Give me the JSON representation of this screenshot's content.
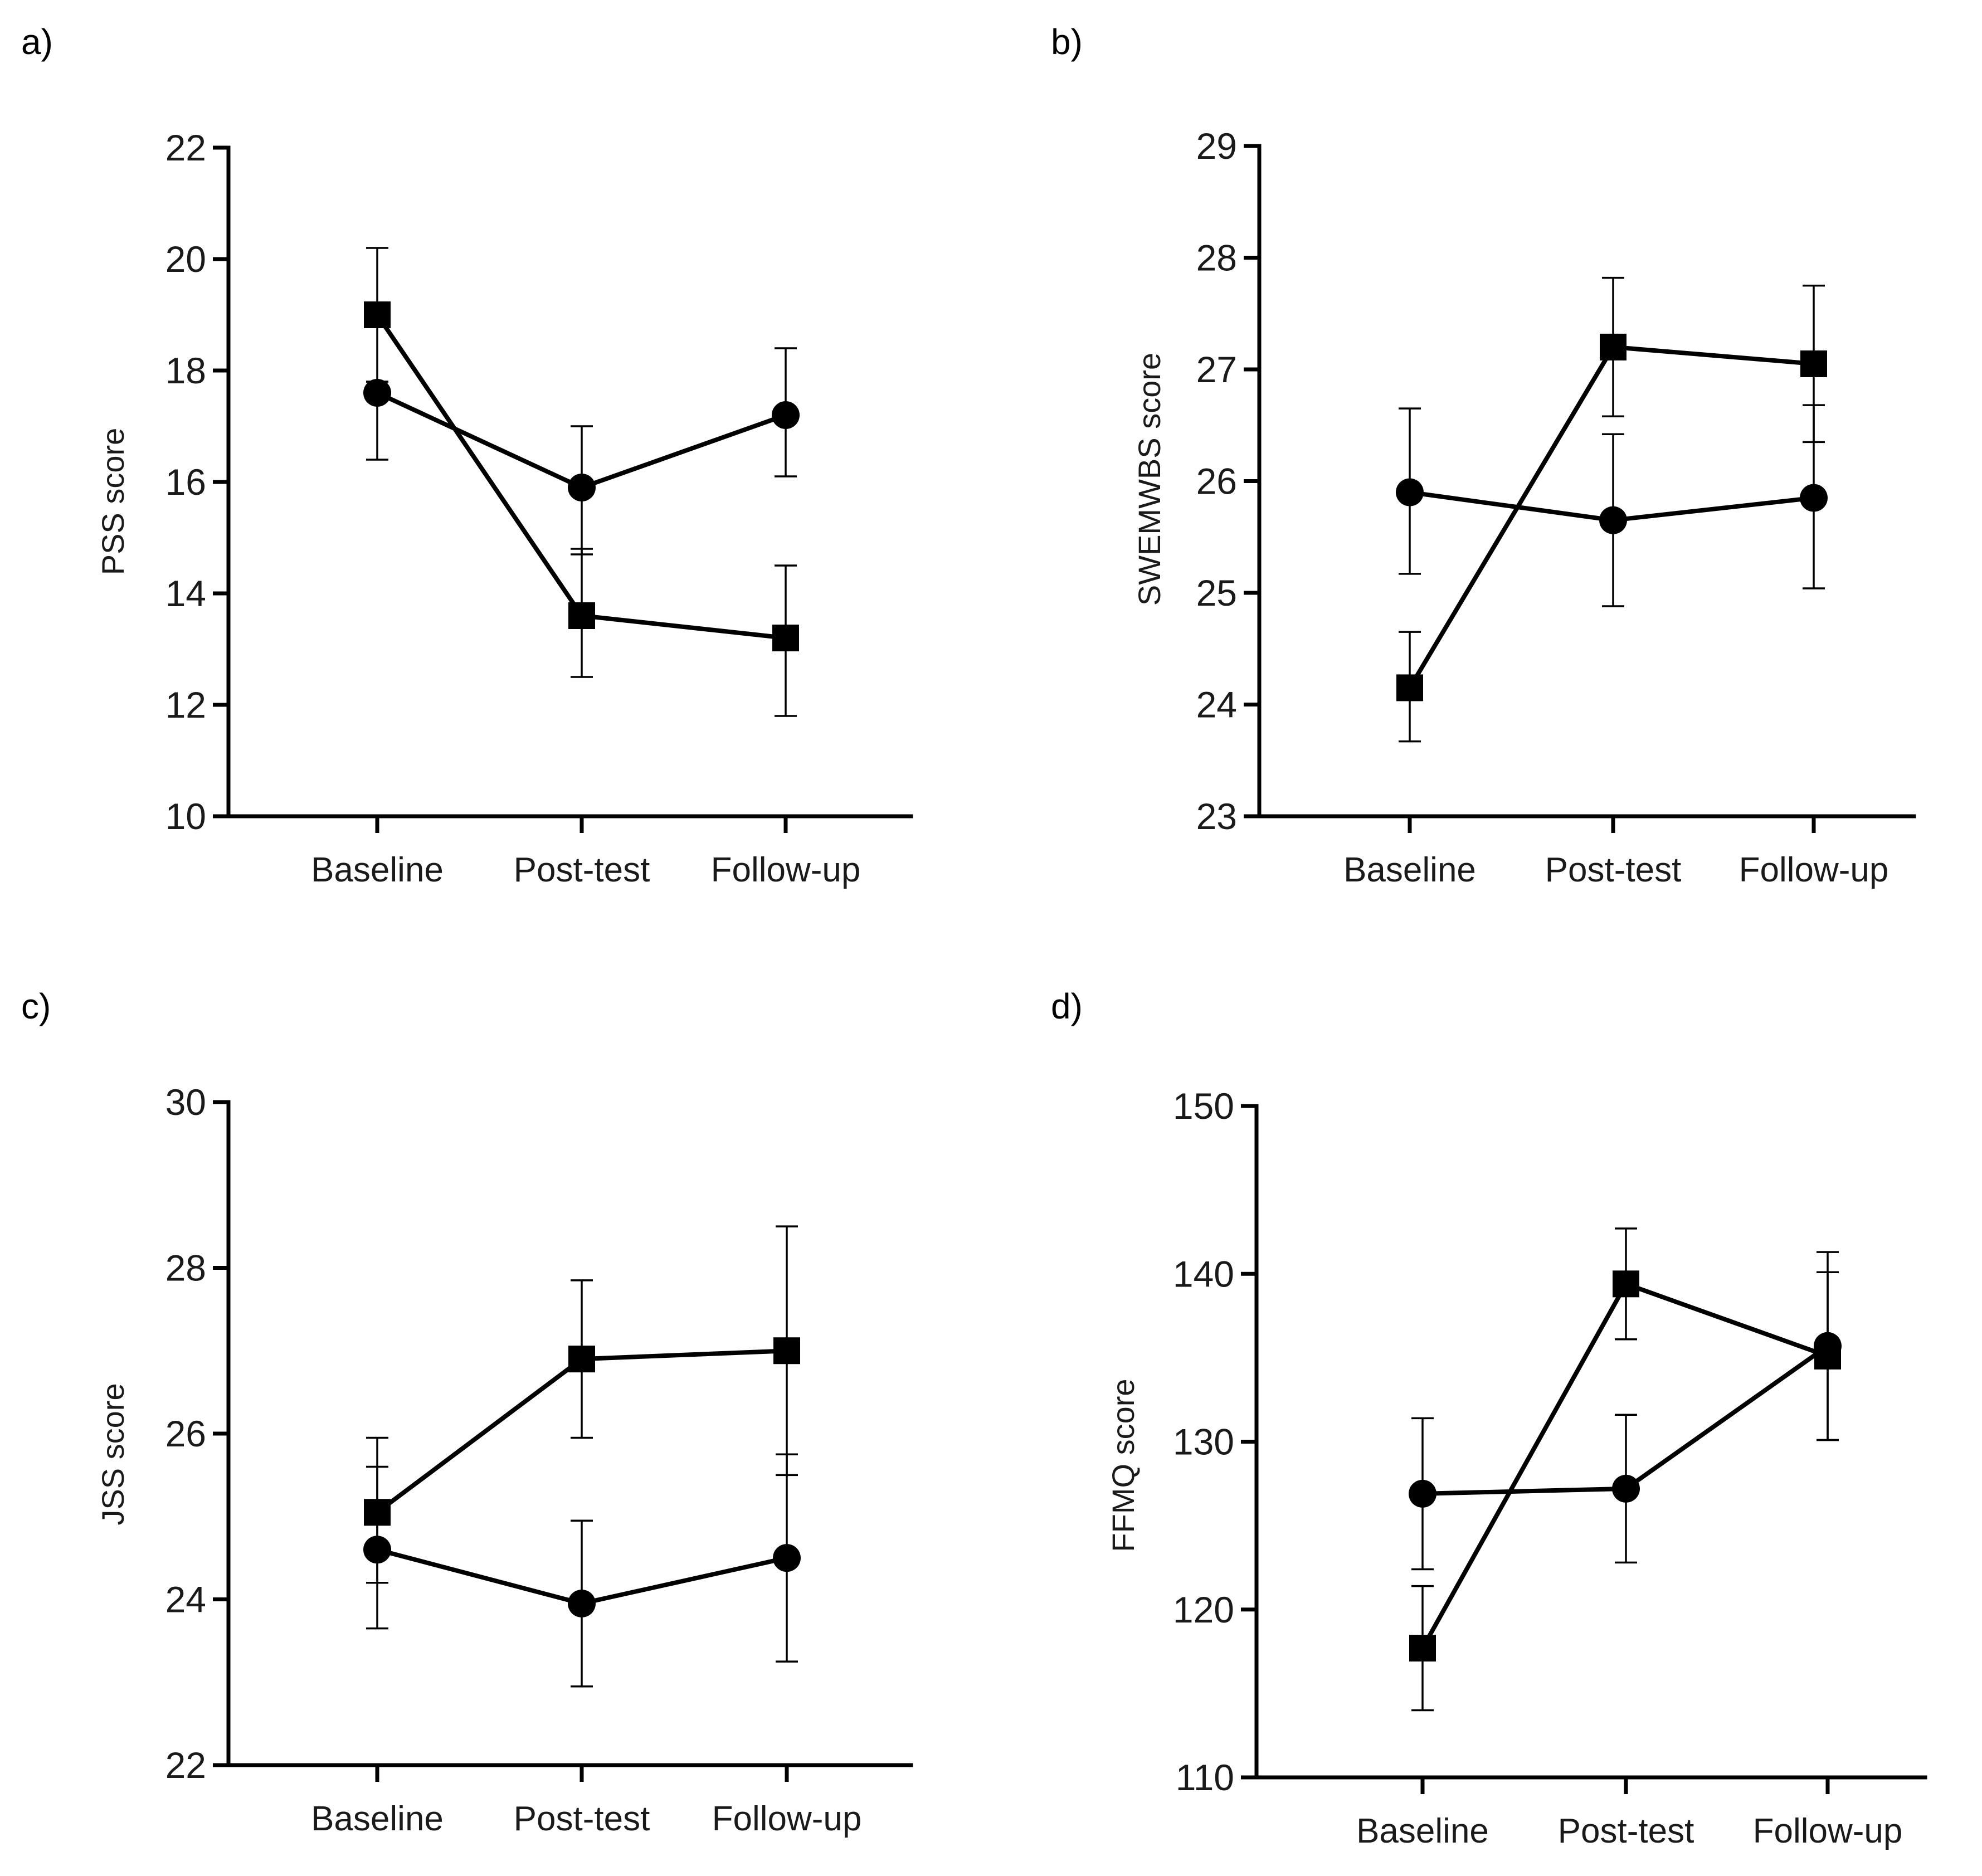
{
  "figure": {
    "markers": {
      "square": "square-marker",
      "circle": "circle-marker"
    },
    "colors": {
      "line": "#000000",
      "axis": "#000000",
      "background": "#ffffff"
    }
  },
  "chart_data": [
    {
      "panel_label": "a)",
      "type": "line",
      "categories": [
        "Baseline",
        "Post-test",
        "Follow-up"
      ],
      "ylabel": "PSS score",
      "ylim": [
        10,
        22
      ],
      "yticks": [
        10,
        12,
        14,
        16,
        18,
        20,
        22
      ],
      "series": [
        {
          "name": "square",
          "marker": "square",
          "values": [
            19.0,
            13.6,
            13.2
          ],
          "err_lower": [
            17.8,
            12.5,
            11.8
          ],
          "err_upper": [
            20.2,
            14.8,
            14.5
          ]
        },
        {
          "name": "circle",
          "marker": "circle",
          "values": [
            17.6,
            15.9,
            17.2
          ],
          "err_lower": [
            16.4,
            14.7,
            16.1
          ],
          "err_upper": [
            17.8,
            17.0,
            18.4
          ]
        }
      ]
    },
    {
      "panel_label": "b)",
      "type": "line",
      "categories": [
        "Baseline",
        "Post-test",
        "Follow-up"
      ],
      "ylabel": "SWEMWBS score",
      "ylim": [
        23,
        29
      ],
      "yticks": [
        23,
        24,
        25,
        26,
        27,
        28,
        29
      ],
      "series": [
        {
          "name": "square",
          "marker": "square",
          "values": [
            24.15,
            27.2,
            27.05
          ],
          "err_lower": [
            23.67,
            26.58,
            26.35
          ],
          "err_upper": [
            24.65,
            27.82,
            27.75
          ]
        },
        {
          "name": "circle",
          "marker": "circle",
          "values": [
            25.9,
            25.65,
            25.85
          ],
          "err_lower": [
            25.17,
            24.88,
            25.04
          ],
          "err_upper": [
            26.65,
            26.42,
            26.68
          ]
        }
      ]
    },
    {
      "panel_label": "c)",
      "type": "line",
      "categories": [
        "Baseline",
        "Post-test",
        "Follow-up"
      ],
      "ylabel": "JSS score",
      "ylim": [
        22,
        30
      ],
      "yticks": [
        22,
        24,
        26,
        28,
        30
      ],
      "series": [
        {
          "name": "square",
          "marker": "square",
          "values": [
            25.05,
            26.9,
            27.0
          ],
          "err_lower": [
            24.2,
            25.95,
            25.5
          ],
          "err_upper": [
            25.95,
            27.85,
            28.5
          ]
        },
        {
          "name": "circle",
          "marker": "circle",
          "values": [
            24.6,
            23.95,
            24.5
          ],
          "err_lower": [
            23.65,
            22.95,
            23.25
          ],
          "err_upper": [
            25.6,
            24.95,
            25.75
          ]
        }
      ]
    },
    {
      "panel_label": "d)",
      "type": "line",
      "categories": [
        "Baseline",
        "Post-test",
        "Follow-up"
      ],
      "ylabel": "FFMQ score",
      "ylim": [
        110,
        150
      ],
      "yticks": [
        110,
        120,
        130,
        140,
        150
      ],
      "series": [
        {
          "name": "square",
          "marker": "square",
          "values": [
            117.7,
            139.4,
            135.1
          ],
          "err_lower": [
            114.0,
            136.1,
            130.1
          ],
          "err_upper": [
            121.4,
            142.7,
            140.1
          ]
        },
        {
          "name": "circle",
          "marker": "circle",
          "values": [
            126.9,
            127.2,
            135.7
          ],
          "err_lower": [
            122.4,
            122.8,
            130.1
          ],
          "err_upper": [
            131.4,
            131.6,
            141.3
          ]
        }
      ]
    }
  ]
}
